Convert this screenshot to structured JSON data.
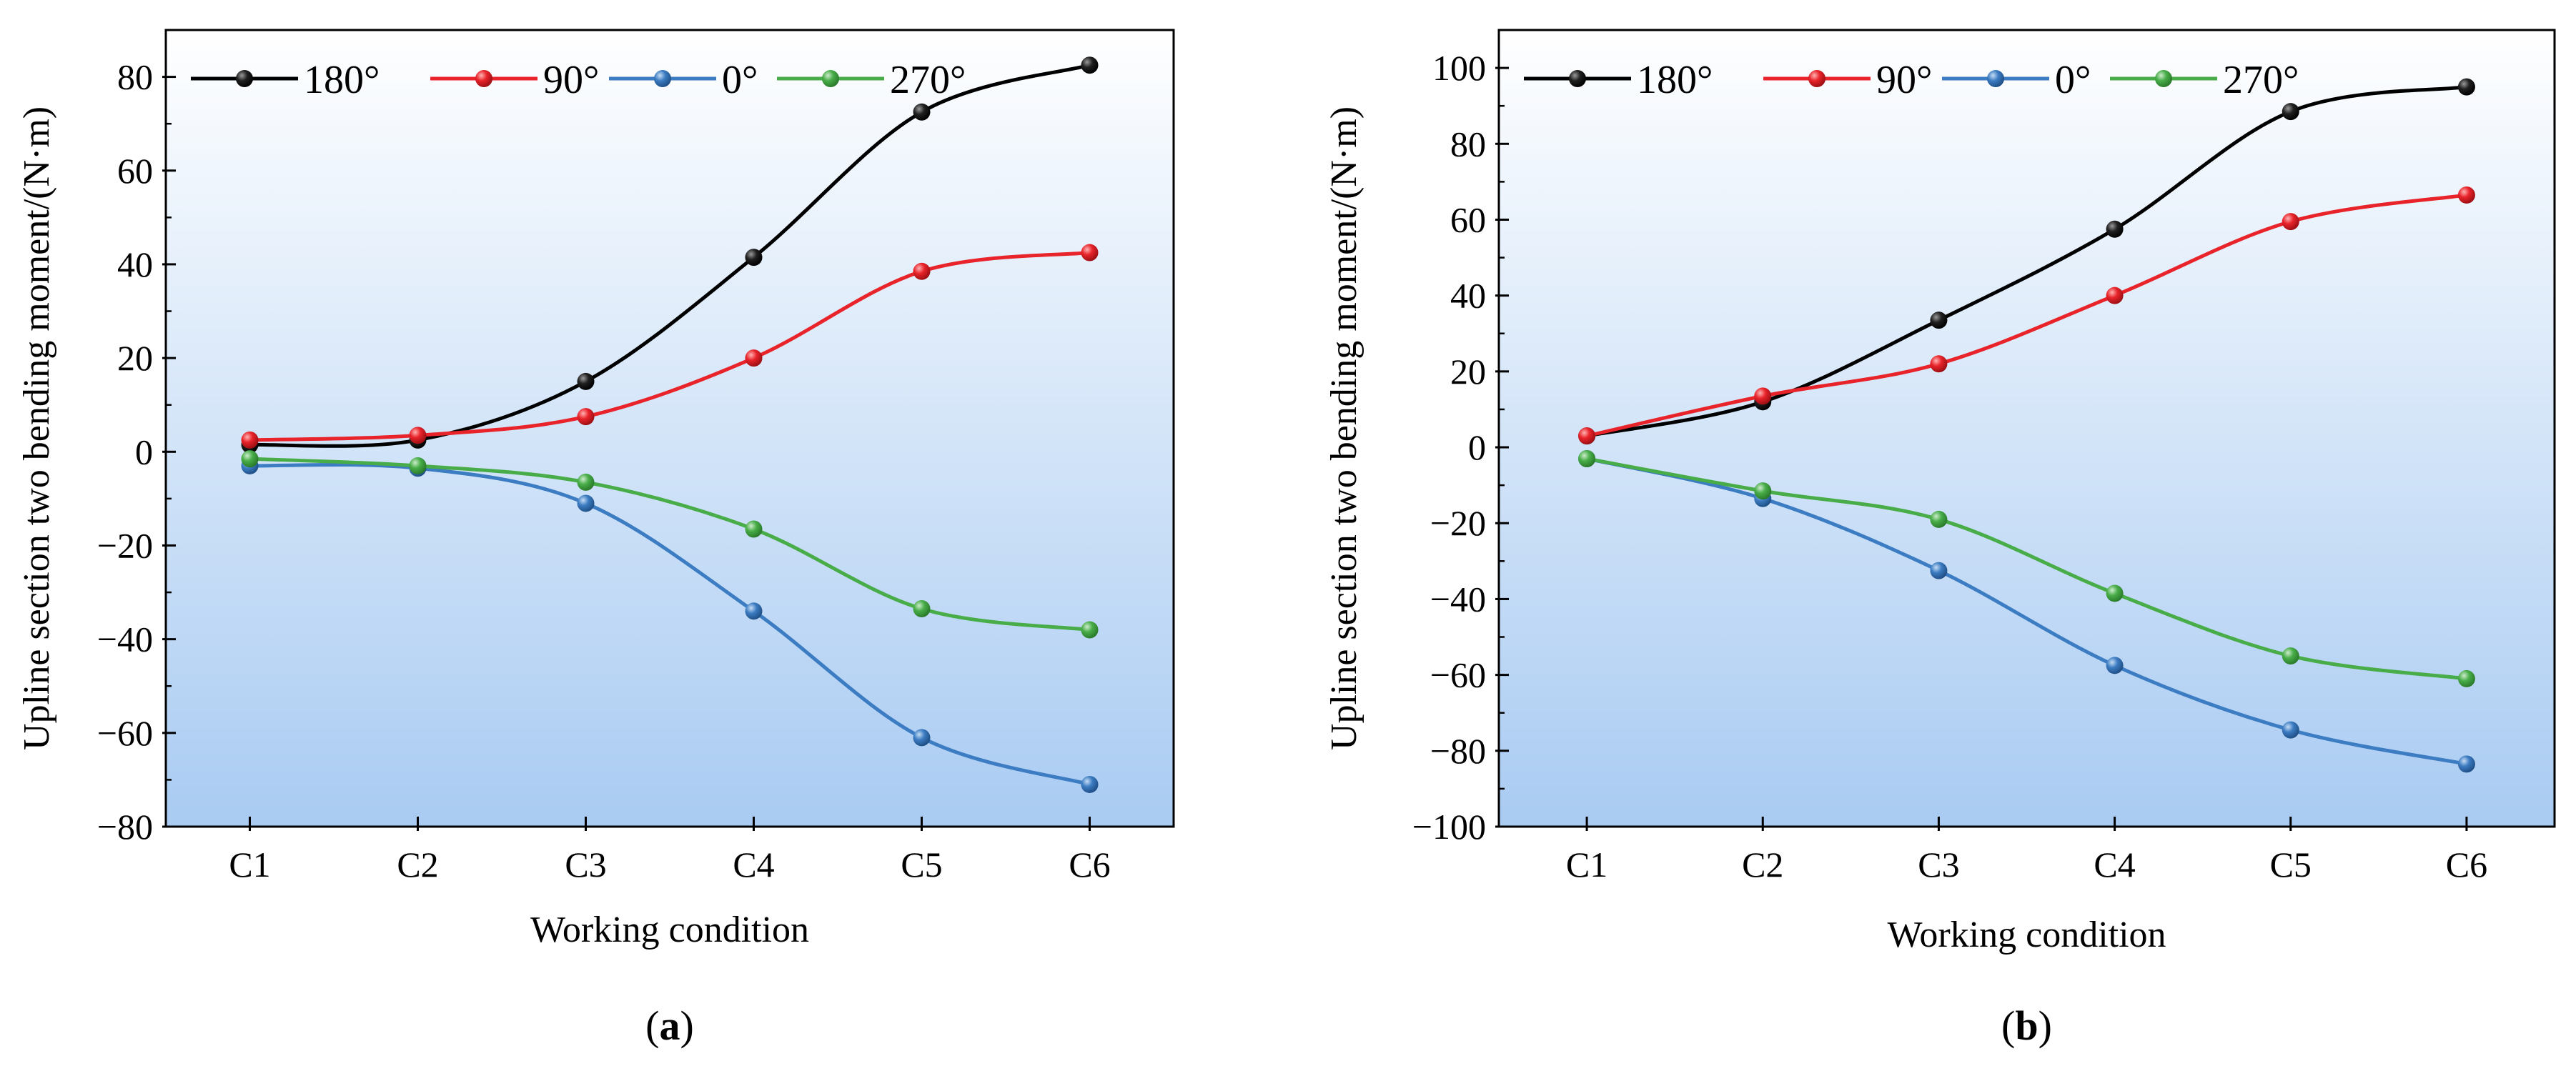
{
  "chart_data": [
    {
      "type": "line",
      "panel_label": "a",
      "xlabel": "Working condition",
      "ylabel": "Upline section two bending moment/(N·m)",
      "categories": [
        "C1",
        "C2",
        "C3",
        "C4",
        "C5",
        "C6"
      ],
      "ylim": [
        -80,
        90
      ],
      "yticks": [
        -80,
        -60,
        -40,
        -20,
        0,
        20,
        40,
        60,
        80
      ],
      "legend_position": "top-left",
      "series": [
        {
          "name": "180°",
          "color": "#000000",
          "values": [
            1.5,
            2.5,
            15,
            41.5,
            72.5,
            82.5
          ]
        },
        {
          "name": "90°",
          "color": "#e8232a",
          "values": [
            2.5,
            3.5,
            7.5,
            20,
            38.5,
            42.5
          ]
        },
        {
          "name": "0°",
          "color": "#3c7cc2",
          "values": [
            -3,
            -3.5,
            -11,
            -34,
            -61,
            -71
          ]
        },
        {
          "name": "270°",
          "color": "#48ad48",
          "values": [
            -1.5,
            -3,
            -6.5,
            -16.5,
            -33.5,
            -38
          ]
        }
      ]
    },
    {
      "type": "line",
      "panel_label": "b",
      "xlabel": "Working condition",
      "ylabel": "Upline section two bending moment/(N·m)",
      "categories": [
        "C1",
        "C2",
        "C3",
        "C4",
        "C5",
        "C6"
      ],
      "ylim": [
        -100,
        110
      ],
      "yticks": [
        -100,
        -80,
        -60,
        -40,
        -20,
        0,
        20,
        40,
        60,
        80,
        100
      ],
      "legend_position": "top-left",
      "series": [
        {
          "name": "180°",
          "color": "#000000",
          "values": [
            3,
            12,
            33.5,
            57.5,
            88.5,
            95
          ]
        },
        {
          "name": "90°",
          "color": "#e8232a",
          "values": [
            3,
            13.5,
            22,
            40,
            59.5,
            66.5
          ]
        },
        {
          "name": "0°",
          "color": "#3c7cc2",
          "values": [
            -3,
            -13.5,
            -32.5,
            -57.5,
            -74.5,
            -83.5
          ]
        },
        {
          "name": "270°",
          "color": "#48ad48",
          "values": [
            -3,
            -11.5,
            -19,
            -38.5,
            -55,
            -61
          ]
        }
      ]
    }
  ]
}
